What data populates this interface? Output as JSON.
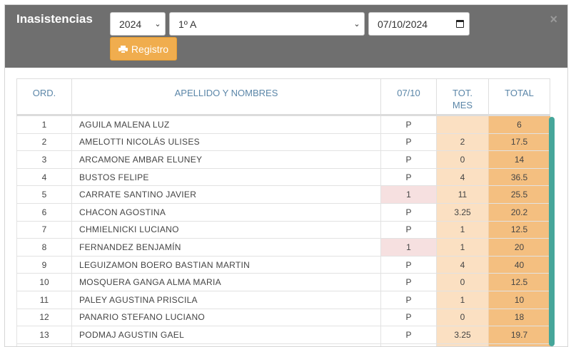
{
  "modal": {
    "title": "Inasistencias",
    "close": "×",
    "year_select": "2024",
    "course_select": "1º A",
    "date_value": "07/10/2024",
    "registro_label": "Registro"
  },
  "colors": {
    "header_bg": "#6f6f6f",
    "registro_btn": "#f0ad4e",
    "mes_col": "#fbe0c2",
    "total_col": "#f4bf80",
    "absent_cell": "#f6e0e0",
    "scrollbar": "#46a69a"
  },
  "table": {
    "headers": {
      "ord": "ORD.",
      "name": "APELLIDO Y NOMBRES",
      "day": "07/10",
      "mes": "TOT. MES",
      "total": "TOTAL"
    },
    "rows": [
      {
        "ord": "1",
        "name": "AGUILA MALENA LUZ",
        "day": "P",
        "mes": "",
        "total": "6"
      },
      {
        "ord": "2",
        "name": "AMELOTTI NICOLÁS ULISES",
        "day": "P",
        "mes": "2",
        "total": "17.5"
      },
      {
        "ord": "3",
        "name": "ARCAMONE AMBAR ELUNEY",
        "day": "P",
        "mes": "0",
        "total": "14"
      },
      {
        "ord": "4",
        "name": "BUSTOS FELIPE",
        "day": "P",
        "mes": "4",
        "total": "36.5"
      },
      {
        "ord": "5",
        "name": "CARRATE SANTINO JAVIER",
        "day": "1",
        "mes": "11",
        "total": "25.5"
      },
      {
        "ord": "6",
        "name": "CHACON AGOSTINA",
        "day": "P",
        "mes": "3.25",
        "total": "20.2"
      },
      {
        "ord": "7",
        "name": "CHMIELNICKI LUCIANO",
        "day": "P",
        "mes": "1",
        "total": "12.5"
      },
      {
        "ord": "8",
        "name": "FERNANDEZ BENJAMÍN",
        "day": "1",
        "mes": "1",
        "total": "20"
      },
      {
        "ord": "9",
        "name": "LEGUIZAMON BOERO BASTIAN MARTIN",
        "day": "P",
        "mes": "4",
        "total": "40"
      },
      {
        "ord": "10",
        "name": "MOSQUERA GANGA ALMA MARIA",
        "day": "P",
        "mes": "0",
        "total": "12.5"
      },
      {
        "ord": "11",
        "name": "PALEY AGUSTINA PRISCILA",
        "day": "P",
        "mes": "1",
        "total": "10"
      },
      {
        "ord": "12",
        "name": "PANARIO STEFANO LUCIANO",
        "day": "P",
        "mes": "0",
        "total": "18"
      },
      {
        "ord": "13",
        "name": "PODMAJ AGUSTIN GAEL",
        "day": "P",
        "mes": "3.25",
        "total": "19.7"
      },
      {
        "ord": "",
        "name": "",
        "day": "",
        "mes": "",
        "total": ""
      }
    ]
  }
}
